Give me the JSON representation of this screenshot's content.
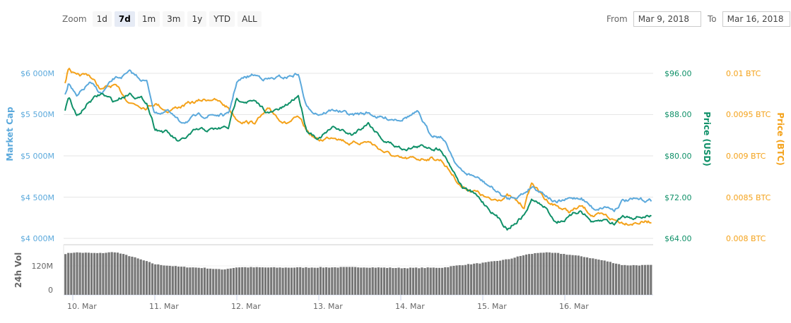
{
  "toolbar": {
    "zoom_label": "Zoom",
    "zoom_buttons": [
      {
        "label": "1d",
        "active": false
      },
      {
        "label": "7d",
        "active": true
      },
      {
        "label": "1m",
        "active": false
      },
      {
        "label": "3m",
        "active": false
      },
      {
        "label": "1y",
        "active": false
      },
      {
        "label": "YTD",
        "active": false
      },
      {
        "label": "ALL",
        "active": false
      }
    ],
    "from_label": "From",
    "from_value": "Mar 9, 2018",
    "to_label": "To",
    "to_value": "Mar 16, 2018"
  },
  "colors": {
    "market_cap": "#5ba9dc",
    "price_usd": "#0f9068",
    "price_btc": "#f4a21a",
    "volume": "#777777",
    "grid": "#e6e6e6"
  },
  "chart_data": {
    "type": "line",
    "title": "",
    "x_ticks": [
      "10. Mar",
      "11. Mar",
      "12. Mar",
      "13. Mar",
      "14. Mar",
      "15. Mar",
      "16. Mar"
    ],
    "axes": {
      "market_cap": {
        "label": "Market Cap",
        "ticks": [
          "$6 000M",
          "$5 500M",
          "$5 000M",
          "$4 500M",
          "$4 000M"
        ],
        "range": [
          4000,
          6000
        ]
      },
      "price_usd": {
        "label": "Price (USD)",
        "ticks": [
          "$96.00",
          "$88.00",
          "$80.00",
          "$72.00",
          "$64.00"
        ],
        "range": [
          64,
          96
        ]
      },
      "price_btc": {
        "label": "Price (BTC)",
        "ticks": [
          "0.01 BTC",
          "0.0095 BTC",
          "0.009 BTC",
          "0.0085 BTC",
          "0.008 BTC"
        ],
        "range": [
          0.008,
          0.01
        ]
      },
      "volume": {
        "label": "24h Vol",
        "ticks": [
          "120M",
          "0"
        ],
        "range": [
          0,
          240
        ]
      }
    },
    "series": [
      {
        "name": "Market Cap",
        "unit": "$M",
        "x_day": [
          9.85,
          9.95,
          10.05,
          10.2,
          10.35,
          10.5,
          10.7,
          10.9,
          11.0,
          11.15,
          11.3,
          11.5,
          11.7,
          11.9,
          12.0,
          12.2,
          12.4,
          12.6,
          12.75,
          12.85,
          13.0,
          13.2,
          13.4,
          13.6,
          13.8,
          14.0,
          14.2,
          14.35,
          14.5,
          14.65,
          14.75,
          14.9,
          15.1,
          15.3,
          15.5,
          15.6,
          15.75,
          15.9,
          16.05,
          16.2,
          16.35,
          16.5,
          16.6,
          16.7
        ],
        "values": [
          5580,
          5900,
          5700,
          5880,
          5750,
          5920,
          6000,
          5900,
          5520,
          5550,
          5400,
          5470,
          5500,
          5490,
          5900,
          5980,
          5930,
          5950,
          6000,
          5580,
          5520,
          5560,
          5490,
          5520,
          5450,
          5460,
          5520,
          5270,
          5240,
          4960,
          4800,
          4750,
          4620,
          4470,
          4550,
          4640,
          4550,
          4430,
          4470,
          4500,
          4360,
          4390,
          4350,
          4460
        ]
      },
      {
        "name": "Price (USD)",
        "unit": "$",
        "x_day": [
          9.85,
          9.95,
          10.05,
          10.2,
          10.35,
          10.5,
          10.7,
          10.9,
          11.0,
          11.15,
          11.3,
          11.5,
          11.7,
          11.9,
          12.0,
          12.2,
          12.4,
          12.6,
          12.75,
          12.85,
          13.0,
          13.2,
          13.4,
          13.6,
          13.8,
          14.0,
          14.2,
          14.35,
          14.5,
          14.65,
          14.75,
          14.9,
          15.1,
          15.3,
          15.5,
          15.6,
          15.75,
          15.9,
          16.05,
          16.2,
          16.35,
          16.5,
          16.6,
          16.7
        ],
        "values": [
          86,
          91.5,
          87.5,
          90.5,
          92,
          90.5,
          92.3,
          90.5,
          85.5,
          84.5,
          82.5,
          84.8,
          85,
          85.5,
          91.2,
          90.5,
          88.2,
          89.5,
          91.8,
          85.2,
          83.5,
          85.5,
          84.0,
          86.5,
          83.0,
          81.5,
          81.8,
          81.8,
          81.3,
          77.0,
          74.0,
          72.5,
          69.5,
          66.0,
          68.5,
          71.5,
          70.0,
          67.2,
          68.0,
          69.5,
          66.8,
          67.5,
          66.8,
          68.3
        ]
      },
      {
        "name": "Price (BTC)",
        "unit": "BTC",
        "x_day": [
          9.85,
          9.95,
          10.05,
          10.2,
          10.35,
          10.5,
          10.7,
          10.9,
          11.0,
          11.15,
          11.3,
          11.5,
          11.7,
          11.9,
          12.0,
          12.2,
          12.4,
          12.6,
          12.75,
          12.85,
          13.0,
          13.2,
          13.4,
          13.6,
          13.8,
          14.0,
          14.2,
          14.35,
          14.5,
          14.65,
          14.75,
          14.9,
          15.1,
          15.3,
          15.5,
          15.6,
          15.75,
          15.9,
          16.05,
          16.2,
          16.35,
          16.5,
          16.6,
          16.7
        ],
        "values": [
          0.00965,
          0.01008,
          0.00995,
          0.00998,
          0.0098,
          0.00985,
          0.00965,
          0.0096,
          0.00965,
          0.00955,
          0.0096,
          0.00965,
          0.0097,
          0.00958,
          0.00945,
          0.0094,
          0.00955,
          0.0094,
          0.00945,
          0.0093,
          0.00918,
          0.00925,
          0.00915,
          0.00918,
          0.00905,
          0.00895,
          0.00896,
          0.00898,
          0.00895,
          0.00875,
          0.00862,
          0.00858,
          0.00845,
          0.00852,
          0.00838,
          0.00868,
          0.00848,
          0.0084,
          0.00832,
          0.00838,
          0.00828,
          0.00826,
          0.00822,
          0.0082
        ]
      },
      {
        "name": "24h Vol",
        "unit": "M",
        "type": "bar",
        "x_day": [
          9.8,
          10.0,
          10.3,
          10.5,
          10.7,
          11.0,
          11.3,
          11.6,
          11.8,
          12.0,
          12.5,
          13.0,
          13.5,
          14.0,
          14.5,
          14.7,
          15.0,
          15.3,
          15.5,
          15.7,
          15.9,
          16.2,
          16.5,
          16.7
        ],
        "values": [
          200,
          212,
          208,
          214,
          192,
          152,
          140,
          134,
          126,
          138,
          136,
          137,
          138,
          134,
          136,
          148,
          160,
          178,
          200,
          212,
          208,
          192,
          168,
          148
        ]
      }
    ]
  }
}
